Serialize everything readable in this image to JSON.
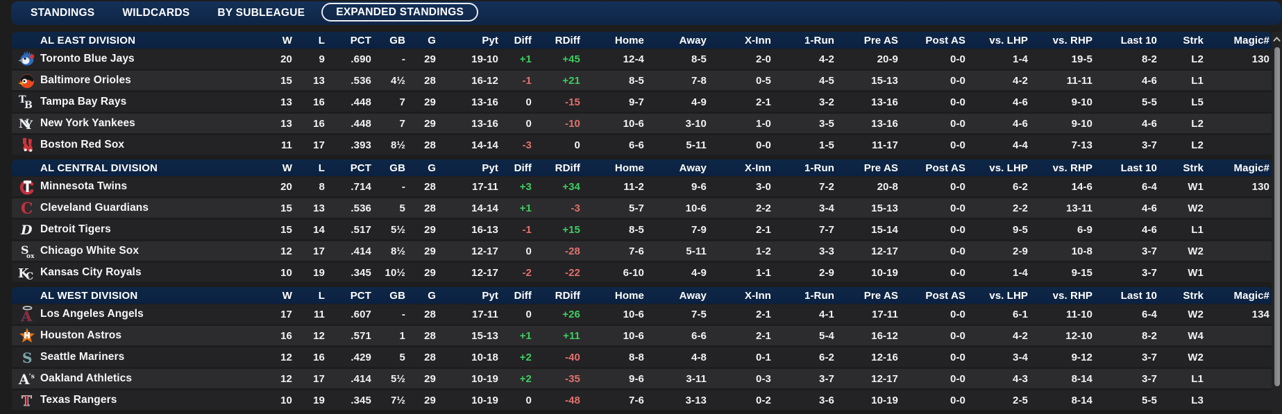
{
  "nav": {
    "tabs": [
      {
        "label": "STANDINGS",
        "active": false
      },
      {
        "label": "WILDCARDS",
        "active": false
      },
      {
        "label": "BY SUBLEAGUE",
        "active": false
      },
      {
        "label": "EXPANDED STANDINGS",
        "active": true
      }
    ]
  },
  "table": {
    "columns": [
      "W",
      "L",
      "PCT",
      "GB",
      "G",
      "Pyt",
      "Diff",
      "RDiff",
      "Home",
      "Away",
      "X-Inn",
      "1-Run",
      "Pre AS",
      "Post AS",
      "vs. LHP",
      "vs. RHP",
      "Last 10",
      "Strk",
      "Magic#"
    ]
  },
  "colors": {
    "nav_bg": "#13294d",
    "header_bg": "#0d2444",
    "row_dark": "#232325",
    "row_light": "#2c2c2e",
    "positive": "#3ecd5f",
    "negative": "#e2716c",
    "text": "#f2f2f2"
  },
  "divisions": [
    {
      "name": "AL EAST DIVISION",
      "teams": [
        {
          "team": "Toronto Blue Jays",
          "logo": "tor",
          "w": "20",
          "l": "9",
          "pct": ".690",
          "gb": "-",
          "g": "29",
          "pyt": "19-10",
          "diff": "+1",
          "rdiff": "+45",
          "home": "12-4",
          "away": "8-5",
          "xinn": "2-0",
          "onerun": "4-2",
          "preas": "20-9",
          "postas": "0-0",
          "vslhp": "1-4",
          "vsrhp": "19-5",
          "last10": "8-2",
          "strk": "L2",
          "magic": "130"
        },
        {
          "team": "Baltimore Orioles",
          "logo": "bal",
          "w": "15",
          "l": "13",
          "pct": ".536",
          "gb": "4½",
          "g": "28",
          "pyt": "16-12",
          "diff": "-1",
          "rdiff": "+21",
          "home": "8-5",
          "away": "7-8",
          "xinn": "0-5",
          "onerun": "4-5",
          "preas": "15-13",
          "postas": "0-0",
          "vslhp": "4-2",
          "vsrhp": "11-11",
          "last10": "4-6",
          "strk": "L1",
          "magic": ""
        },
        {
          "team": "Tampa Bay Rays",
          "logo": "tb",
          "w": "13",
          "l": "16",
          "pct": ".448",
          "gb": "7",
          "g": "29",
          "pyt": "13-16",
          "diff": "0",
          "rdiff": "-15",
          "home": "9-7",
          "away": "4-9",
          "xinn": "2-1",
          "onerun": "3-2",
          "preas": "13-16",
          "postas": "0-0",
          "vslhp": "4-6",
          "vsrhp": "9-10",
          "last10": "5-5",
          "strk": "L5",
          "magic": ""
        },
        {
          "team": "New York Yankees",
          "logo": "nyy",
          "w": "13",
          "l": "16",
          "pct": ".448",
          "gb": "7",
          "g": "29",
          "pyt": "13-16",
          "diff": "0",
          "rdiff": "-10",
          "home": "10-6",
          "away": "3-10",
          "xinn": "1-0",
          "onerun": "3-5",
          "preas": "13-16",
          "postas": "0-0",
          "vslhp": "4-6",
          "vsrhp": "9-10",
          "last10": "4-6",
          "strk": "L2",
          "magic": ""
        },
        {
          "team": "Boston Red Sox",
          "logo": "bos",
          "w": "11",
          "l": "17",
          "pct": ".393",
          "gb": "8½",
          "g": "28",
          "pyt": "14-14",
          "diff": "-3",
          "rdiff": "0",
          "home": "6-6",
          "away": "5-11",
          "xinn": "0-0",
          "onerun": "1-5",
          "preas": "11-17",
          "postas": "0-0",
          "vslhp": "4-4",
          "vsrhp": "7-13",
          "last10": "3-7",
          "strk": "L2",
          "magic": ""
        }
      ]
    },
    {
      "name": "AL CENTRAL DIVISION",
      "teams": [
        {
          "team": "Minnesota Twins",
          "logo": "min",
          "w": "20",
          "l": "8",
          "pct": ".714",
          "gb": "-",
          "g": "28",
          "pyt": "17-11",
          "diff": "+3",
          "rdiff": "+34",
          "home": "11-2",
          "away": "9-6",
          "xinn": "3-0",
          "onerun": "7-2",
          "preas": "20-8",
          "postas": "0-0",
          "vslhp": "6-2",
          "vsrhp": "14-6",
          "last10": "6-4",
          "strk": "W1",
          "magic": "130"
        },
        {
          "team": "Cleveland Guardians",
          "logo": "cle",
          "w": "15",
          "l": "13",
          "pct": ".536",
          "gb": "5",
          "g": "28",
          "pyt": "14-14",
          "diff": "+1",
          "rdiff": "-3",
          "home": "5-7",
          "away": "10-6",
          "xinn": "2-2",
          "onerun": "3-4",
          "preas": "15-13",
          "postas": "0-0",
          "vslhp": "2-2",
          "vsrhp": "13-11",
          "last10": "4-6",
          "strk": "W2",
          "magic": ""
        },
        {
          "team": "Detroit Tigers",
          "logo": "det",
          "w": "15",
          "l": "14",
          "pct": ".517",
          "gb": "5½",
          "g": "29",
          "pyt": "16-13",
          "diff": "-1",
          "rdiff": "+15",
          "home": "8-5",
          "away": "7-9",
          "xinn": "2-1",
          "onerun": "7-7",
          "preas": "15-14",
          "postas": "0-0",
          "vslhp": "9-5",
          "vsrhp": "6-9",
          "last10": "4-6",
          "strk": "L1",
          "magic": ""
        },
        {
          "team": "Chicago White Sox",
          "logo": "cws",
          "w": "12",
          "l": "17",
          "pct": ".414",
          "gb": "8½",
          "g": "29",
          "pyt": "12-17",
          "diff": "0",
          "rdiff": "-28",
          "home": "7-6",
          "away": "5-11",
          "xinn": "1-2",
          "onerun": "3-3",
          "preas": "12-17",
          "postas": "0-0",
          "vslhp": "2-9",
          "vsrhp": "10-8",
          "last10": "3-7",
          "strk": "W2",
          "magic": ""
        },
        {
          "team": "Kansas City Royals",
          "logo": "kc",
          "w": "10",
          "l": "19",
          "pct": ".345",
          "gb": "10½",
          "g": "29",
          "pyt": "12-17",
          "diff": "-2",
          "rdiff": "-22",
          "home": "6-10",
          "away": "4-9",
          "xinn": "1-1",
          "onerun": "2-9",
          "preas": "10-19",
          "postas": "0-0",
          "vslhp": "1-4",
          "vsrhp": "9-15",
          "last10": "3-7",
          "strk": "W1",
          "magic": ""
        }
      ]
    },
    {
      "name": "AL WEST DIVISION",
      "teams": [
        {
          "team": "Los Angeles Angels",
          "logo": "laa",
          "w": "17",
          "l": "11",
          "pct": ".607",
          "gb": "-",
          "g": "28",
          "pyt": "17-11",
          "diff": "0",
          "rdiff": "+26",
          "home": "10-6",
          "away": "7-5",
          "xinn": "2-1",
          "onerun": "4-1",
          "preas": "17-11",
          "postas": "0-0",
          "vslhp": "6-1",
          "vsrhp": "11-10",
          "last10": "6-4",
          "strk": "W2",
          "magic": "134"
        },
        {
          "team": "Houston Astros",
          "logo": "hou",
          "w": "16",
          "l": "12",
          "pct": ".571",
          "gb": "1",
          "g": "28",
          "pyt": "15-13",
          "diff": "+1",
          "rdiff": "+11",
          "home": "10-6",
          "away": "6-6",
          "xinn": "2-1",
          "onerun": "5-4",
          "preas": "16-12",
          "postas": "0-0",
          "vslhp": "4-2",
          "vsrhp": "12-10",
          "last10": "8-2",
          "strk": "W4",
          "magic": ""
        },
        {
          "team": "Seattle Mariners",
          "logo": "sea",
          "w": "12",
          "l": "16",
          "pct": ".429",
          "gb": "5",
          "g": "28",
          "pyt": "10-18",
          "diff": "+2",
          "rdiff": "-40",
          "home": "8-8",
          "away": "4-8",
          "xinn": "0-1",
          "onerun": "6-2",
          "preas": "12-16",
          "postas": "0-0",
          "vslhp": "3-4",
          "vsrhp": "9-12",
          "last10": "3-7",
          "strk": "W2",
          "magic": ""
        },
        {
          "team": "Oakland Athletics",
          "logo": "oak",
          "w": "12",
          "l": "17",
          "pct": ".414",
          "gb": "5½",
          "g": "29",
          "pyt": "10-19",
          "diff": "+2",
          "rdiff": "-35",
          "home": "9-6",
          "away": "3-11",
          "xinn": "0-3",
          "onerun": "3-7",
          "preas": "12-17",
          "postas": "0-0",
          "vslhp": "4-3",
          "vsrhp": "8-14",
          "last10": "3-7",
          "strk": "L1",
          "magic": ""
        },
        {
          "team": "Texas Rangers",
          "logo": "tex",
          "w": "10",
          "l": "19",
          "pct": ".345",
          "gb": "7½",
          "g": "29",
          "pyt": "10-19",
          "diff": "0",
          "rdiff": "-48",
          "home": "7-6",
          "away": "3-13",
          "xinn": "0-2",
          "onerun": "3-6",
          "preas": "10-19",
          "postas": "0-0",
          "vslhp": "2-5",
          "vsrhp": "8-14",
          "last10": "5-5",
          "strk": "L3",
          "magic": ""
        }
      ]
    }
  ]
}
